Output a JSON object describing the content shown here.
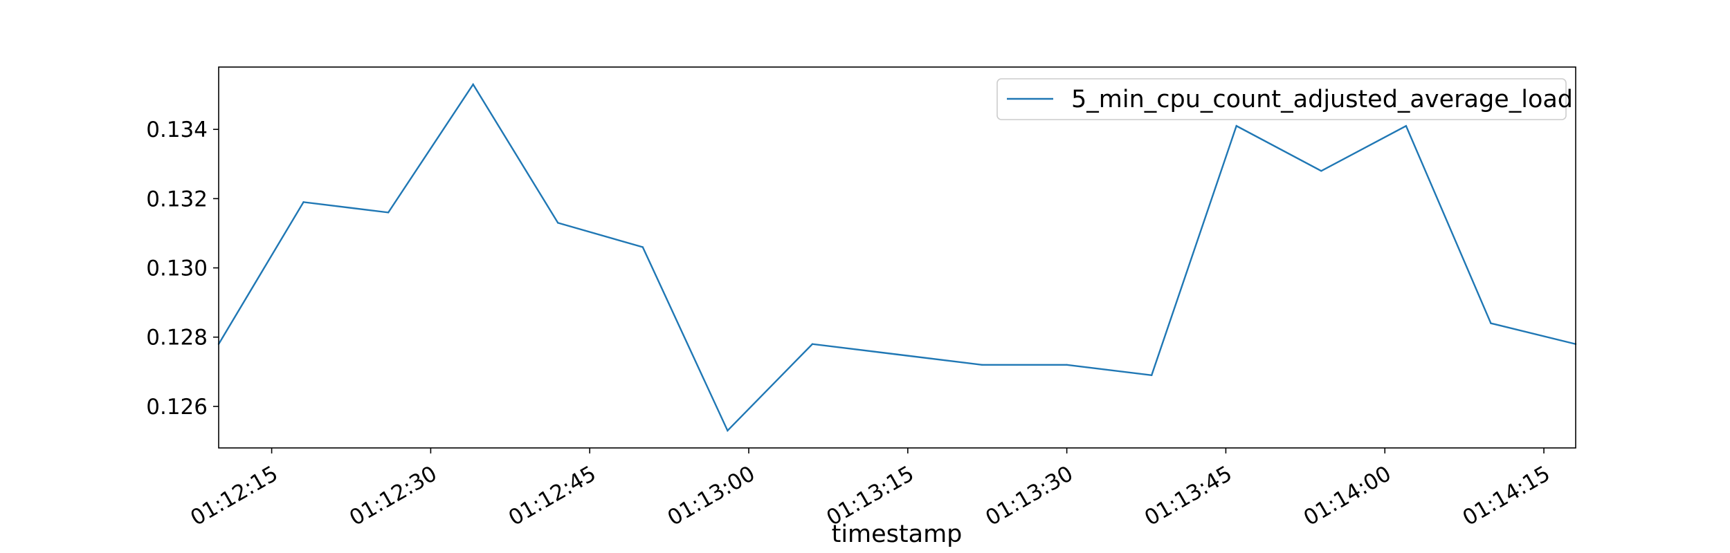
{
  "chart_data": {
    "type": "line",
    "title": "",
    "xlabel": "timestamp",
    "ylabel": "",
    "x": [
      "01:12:10",
      "01:12:18",
      "01:12:26",
      "01:12:34",
      "01:12:42",
      "01:12:50",
      "01:12:58",
      "01:13:06",
      "01:13:14",
      "01:13:22",
      "01:13:30",
      "01:13:38",
      "01:13:46",
      "01:13:54",
      "01:14:02",
      "01:14:10",
      "01:14:18"
    ],
    "series": [
      {
        "name": "5_min_cpu_count_adjusted_average_load",
        "color": "#1f77b4",
        "values": [
          0.1278,
          0.1319,
          0.1316,
          0.1353,
          0.1313,
          0.1306,
          0.1253,
          0.1278,
          0.1275,
          0.1272,
          0.1272,
          0.1269,
          0.1341,
          0.1328,
          0.1341,
          0.1284,
          0.1278
        ]
      }
    ],
    "x_ticks": [
      "01:12:15",
      "01:12:30",
      "01:12:45",
      "01:13:00",
      "01:13:15",
      "01:13:30",
      "01:13:45",
      "01:14:00",
      "01:14:15"
    ],
    "y_ticks": [
      "0.126",
      "0.128",
      "0.130",
      "0.132",
      "0.134"
    ],
    "xlim": [
      "01:12:10",
      "01:14:18"
    ],
    "ylim": [
      0.1248,
      0.1358
    ],
    "grid": false,
    "legend": "top-right"
  }
}
